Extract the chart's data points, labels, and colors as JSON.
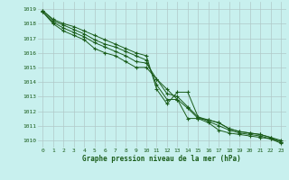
{
  "title": "Graphe pression niveau de la mer (hPa)",
  "background_color": "#c8f0ee",
  "grid_color": "#b0c8c8",
  "line_color": "#1a5c1a",
  "x_min": -0.5,
  "x_max": 23.5,
  "y_min": 1009.5,
  "y_max": 1019.5,
  "yticks": [
    1010,
    1011,
    1012,
    1013,
    1014,
    1015,
    1016,
    1017,
    1018,
    1019
  ],
  "xticks": [
    0,
    1,
    2,
    3,
    4,
    5,
    6,
    7,
    8,
    9,
    10,
    11,
    12,
    13,
    14,
    15,
    16,
    17,
    18,
    19,
    20,
    21,
    22,
    23
  ],
  "series": [
    [
      1018.8,
      1018.0,
      1017.5,
      1017.2,
      1016.9,
      1016.3,
      1016.0,
      1015.8,
      1015.4,
      1015.0,
      1015.0,
      1014.2,
      1013.5,
      1012.8,
      1012.2,
      1011.5,
      1011.2,
      1010.7,
      1010.5,
      1010.4,
      1010.3,
      1010.2,
      1010.1,
      1009.8
    ],
    [
      1018.8,
      1018.1,
      1017.7,
      1017.4,
      1017.1,
      1016.7,
      1016.4,
      1016.1,
      1015.8,
      1015.4,
      1015.3,
      1014.2,
      1013.2,
      1013.0,
      1012.3,
      1011.6,
      1011.3,
      1011.0,
      1010.7,
      1010.5,
      1010.4,
      1010.3,
      1010.1,
      1009.9
    ],
    [
      1018.9,
      1018.2,
      1017.9,
      1017.6,
      1017.3,
      1016.9,
      1016.6,
      1016.4,
      1016.1,
      1015.8,
      1015.5,
      1013.8,
      1012.8,
      1012.8,
      1011.5,
      1011.5,
      1011.4,
      1011.2,
      1010.8,
      1010.6,
      1010.5,
      1010.4,
      1010.2,
      1009.9
    ],
    [
      1018.9,
      1018.3,
      1018.0,
      1017.8,
      1017.5,
      1017.2,
      1016.9,
      1016.6,
      1016.3,
      1016.0,
      1015.8,
      1013.5,
      1012.5,
      1013.3,
      1013.3,
      1011.6,
      1011.4,
      1011.2,
      1010.8,
      1010.6,
      1010.5,
      1010.4,
      1010.2,
      1010.0
    ]
  ],
  "marker_series": [
    0,
    2,
    4,
    6,
    8,
    10,
    12,
    14,
    16,
    18,
    20,
    22
  ]
}
